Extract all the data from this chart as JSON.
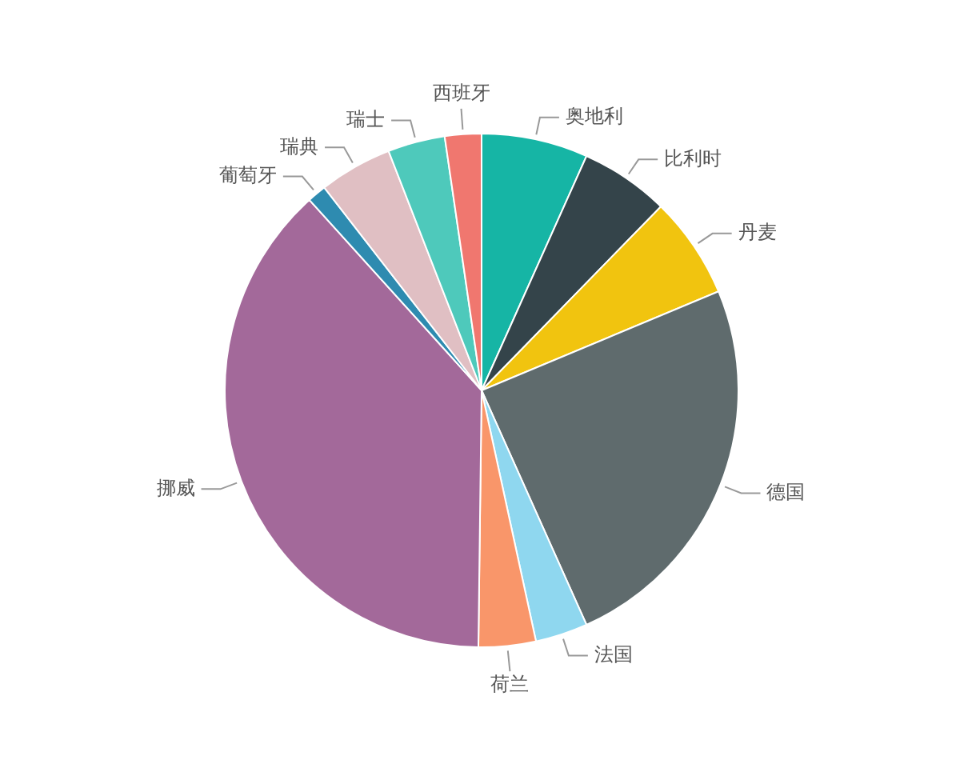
{
  "chart_data": {
    "type": "pie",
    "categories": [
      "奥地利",
      "比利时",
      "丹麦",
      "德国",
      "法国",
      "荷兰",
      "挪威",
      "葡萄牙",
      "瑞典",
      "瑞士",
      "西班牙"
    ],
    "values": [
      6.7,
      5.6,
      6.4,
      24.6,
      3.3,
      3.6,
      38.1,
      1.2,
      4.6,
      3.6,
      2.3
    ],
    "colors": [
      "#16b5a5",
      "#34444a",
      "#f1c40f",
      "#5f6b6d",
      "#8fd7ef",
      "#f9966a",
      "#a3699a",
      "#2e8bb0",
      "#e0bfc3",
      "#4ec9bb",
      "#f0776f"
    ],
    "legend": false
  }
}
